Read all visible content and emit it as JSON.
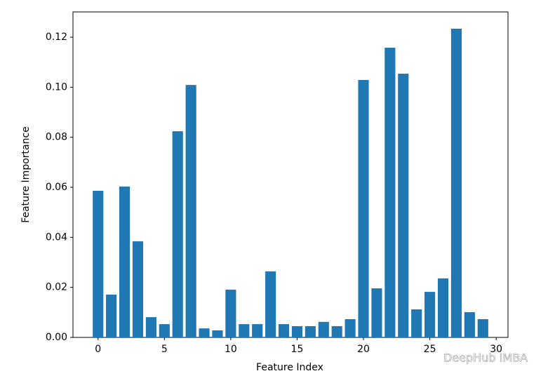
{
  "chart_data": {
    "type": "bar",
    "x_label": "Feature Index",
    "y_label": "Feature Importance",
    "x": [
      0,
      1,
      2,
      3,
      4,
      5,
      6,
      7,
      8,
      9,
      10,
      11,
      12,
      13,
      14,
      15,
      16,
      17,
      18,
      19,
      20,
      21,
      22,
      23,
      24,
      25,
      26,
      27,
      28,
      29
    ],
    "values": [
      0.0586,
      0.0171,
      0.0603,
      0.0384,
      0.0081,
      0.0053,
      0.0824,
      0.1009,
      0.0036,
      0.0028,
      0.0191,
      0.0053,
      0.0053,
      0.0264,
      0.0053,
      0.0045,
      0.0045,
      0.0062,
      0.0045,
      0.0073,
      0.1029,
      0.0196,
      0.1158,
      0.1054,
      0.0112,
      0.0182,
      0.0236,
      0.1234,
      0.0101,
      0.0073
    ],
    "color": "#1f77b4",
    "xlim": [
      -1.89,
      30.89
    ],
    "xticks": [
      0,
      5,
      10,
      15,
      20,
      25,
      30
    ],
    "ylim": [
      0,
      0.1301
    ],
    "yticks": [
      {
        "value": 0,
        "label": "0.00"
      },
      {
        "value": 0.02,
        "label": "0.02"
      },
      {
        "value": 0.04,
        "label": "0.04"
      },
      {
        "value": 0.06,
        "label": "0.06"
      },
      {
        "value": 0.08,
        "label": "0.08"
      },
      {
        "value": 0.1,
        "label": "0.10"
      },
      {
        "value": 0.12,
        "label": "0.12"
      }
    ],
    "grid": false,
    "watermark": "DeepHub IMBA"
  }
}
